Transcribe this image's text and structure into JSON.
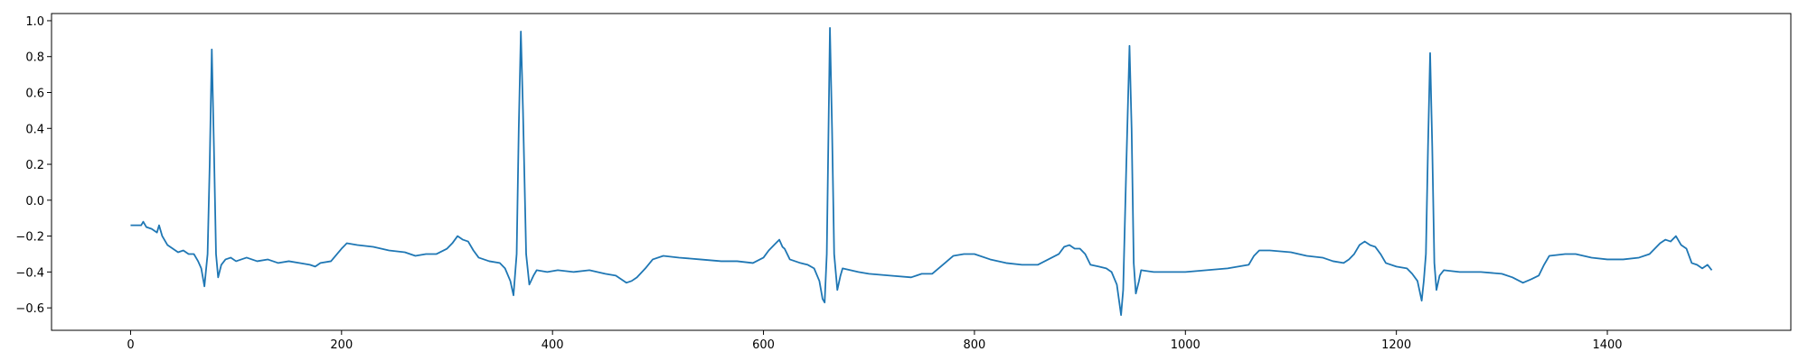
{
  "chart_data": {
    "type": "line",
    "color": "#1f77b4",
    "x": [
      0,
      10,
      12,
      15,
      20,
      25,
      27,
      30,
      35,
      40,
      45,
      50,
      55,
      60,
      64,
      67,
      70,
      73,
      75,
      77,
      79,
      81,
      83,
      86,
      90,
      95,
      100,
      110,
      120,
      130,
      140,
      150,
      160,
      170,
      175,
      180,
      190,
      200,
      205,
      215,
      230,
      245,
      260,
      270,
      280,
      290,
      300,
      305,
      310,
      315,
      320,
      325,
      330,
      340,
      350,
      355,
      360,
      363,
      366,
      368,
      370,
      372,
      375,
      378,
      382,
      385,
      395,
      405,
      420,
      435,
      450,
      460,
      470,
      475,
      480,
      488,
      495,
      505,
      520,
      540,
      560,
      575,
      590,
      600,
      605,
      610,
      615,
      618,
      620,
      625,
      635,
      642,
      648,
      653,
      656,
      658,
      660,
      663,
      665,
      667,
      670,
      673,
      675,
      690,
      700,
      720,
      740,
      750,
      760,
      770,
      780,
      790,
      800,
      815,
      830,
      845,
      860,
      870,
      880,
      885,
      890,
      895,
      900,
      905,
      910,
      918,
      925,
      930,
      935,
      939,
      941,
      944,
      947,
      949,
      951,
      953,
      956,
      958,
      970,
      985,
      1000,
      1020,
      1040,
      1050,
      1060,
      1065,
      1070,
      1080,
      1100,
      1115,
      1130,
      1140,
      1150,
      1155,
      1160,
      1165,
      1170,
      1175,
      1180,
      1185,
      1190,
      1200,
      1210,
      1215,
      1220,
      1224,
      1226,
      1228,
      1230,
      1232,
      1234,
      1236,
      1238,
      1241,
      1245,
      1260,
      1280,
      1300,
      1310,
      1320,
      1328,
      1335,
      1340,
      1345,
      1360,
      1370,
      1385,
      1400,
      1415,
      1430,
      1440,
      1450,
      1455,
      1460,
      1465,
      1470,
      1475,
      1480,
      1485,
      1490,
      1495,
      1499
    ],
    "values": [
      -0.14,
      -0.14,
      -0.12,
      -0.15,
      -0.16,
      -0.18,
      -0.14,
      -0.2,
      -0.25,
      -0.27,
      -0.29,
      -0.28,
      -0.3,
      -0.3,
      -0.34,
      -0.38,
      -0.48,
      -0.3,
      0.2,
      0.84,
      0.3,
      -0.3,
      -0.43,
      -0.36,
      -0.33,
      -0.32,
      -0.34,
      -0.32,
      -0.34,
      -0.33,
      -0.35,
      -0.34,
      -0.35,
      -0.36,
      -0.37,
      -0.35,
      -0.34,
      -0.27,
      -0.24,
      -0.25,
      -0.26,
      -0.28,
      -0.29,
      -0.31,
      -0.3,
      -0.3,
      -0.27,
      -0.24,
      -0.2,
      -0.22,
      -0.23,
      -0.28,
      -0.32,
      -0.34,
      -0.35,
      -0.38,
      -0.45,
      -0.53,
      -0.3,
      0.4,
      0.94,
      0.5,
      -0.3,
      -0.47,
      -0.42,
      -0.39,
      -0.4,
      -0.39,
      -0.4,
      -0.39,
      -0.41,
      -0.42,
      -0.46,
      -0.45,
      -0.43,
      -0.38,
      -0.33,
      -0.31,
      -0.32,
      -0.33,
      -0.34,
      -0.34,
      -0.35,
      -0.32,
      -0.28,
      -0.25,
      -0.22,
      -0.26,
      -0.27,
      -0.33,
      -0.35,
      -0.36,
      -0.38,
      -0.45,
      -0.55,
      -0.57,
      -0.3,
      0.96,
      0.4,
      -0.3,
      -0.5,
      -0.42,
      -0.38,
      -0.4,
      -0.41,
      -0.42,
      -0.43,
      -0.41,
      -0.41,
      -0.36,
      -0.31,
      -0.3,
      -0.3,
      -0.33,
      -0.35,
      -0.36,
      -0.36,
      -0.33,
      -0.3,
      -0.26,
      -0.25,
      -0.27,
      -0.27,
      -0.3,
      -0.36,
      -0.37,
      -0.38,
      -0.4,
      -0.47,
      -0.64,
      -0.5,
      0.2,
      0.86,
      0.4,
      -0.35,
      -0.52,
      -0.45,
      -0.39,
      -0.4,
      -0.4,
      -0.4,
      -0.39,
      -0.38,
      -0.37,
      -0.36,
      -0.31,
      -0.28,
      -0.28,
      -0.29,
      -0.31,
      -0.32,
      -0.34,
      -0.35,
      -0.33,
      -0.3,
      -0.25,
      -0.23,
      -0.25,
      -0.26,
      -0.3,
      -0.35,
      -0.37,
      -0.38,
      -0.41,
      -0.45,
      -0.56,
      -0.45,
      -0.3,
      0.3,
      0.82,
      0.3,
      -0.35,
      -0.5,
      -0.42,
      -0.39,
      -0.4,
      -0.4,
      -0.41,
      -0.43,
      -0.46,
      -0.44,
      -0.42,
      -0.36,
      -0.31,
      -0.3,
      -0.3,
      -0.32,
      -0.33,
      -0.33,
      -0.32,
      -0.3,
      -0.24,
      -0.22,
      -0.23,
      -0.2,
      -0.25,
      -0.27,
      -0.35,
      -0.36,
      -0.38,
      -0.36,
      -0.39
    ],
    "xlim": [
      -74.95,
      1573.95
    ],
    "ylim": [
      -0.725,
      1.04
    ],
    "xticks": [
      0,
      200,
      400,
      600,
      800,
      1000,
      1200,
      1400
    ],
    "yticks": [
      {
        "value": -0.6,
        "label": "−0.6"
      },
      {
        "value": -0.4,
        "label": "−0.4"
      },
      {
        "value": -0.2,
        "label": "−0.2"
      },
      {
        "value": 0,
        "label": "0.0"
      },
      0.2,
      0.4,
      0.6,
      0.8,
      {
        "value": 1,
        "label": "1.0"
      }
    ]
  }
}
